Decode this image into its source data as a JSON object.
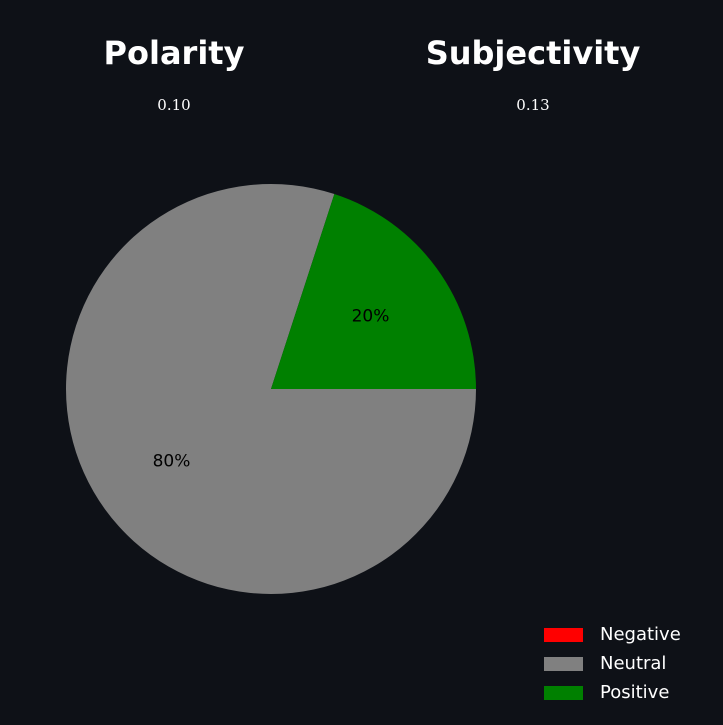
{
  "metrics": {
    "polarity": {
      "title": "Polarity",
      "value": "0.10"
    },
    "subjectivity": {
      "title": "Subjectivity",
      "value": "0.13"
    }
  },
  "chart_data": {
    "type": "pie",
    "title": "",
    "categories": [
      "Negative",
      "Neutral",
      "Positive"
    ],
    "values": [
      0,
      80,
      20
    ],
    "value_labels": [
      "",
      "80%",
      "20%"
    ],
    "colors": [
      "#ff0000",
      "#808080",
      "#008000"
    ],
    "label_color": "#000000",
    "start_angle_deg": 0,
    "direction": "clockwise",
    "legend": {
      "placement": "bottom-right",
      "entries": [
        {
          "label": "Negative",
          "color": "#ff0000"
        },
        {
          "label": "Neutral",
          "color": "#808080"
        },
        {
          "label": "Positive",
          "color": "#008000"
        }
      ]
    }
  },
  "colors": {
    "background": "#0e1117",
    "text": "#ffffff"
  }
}
